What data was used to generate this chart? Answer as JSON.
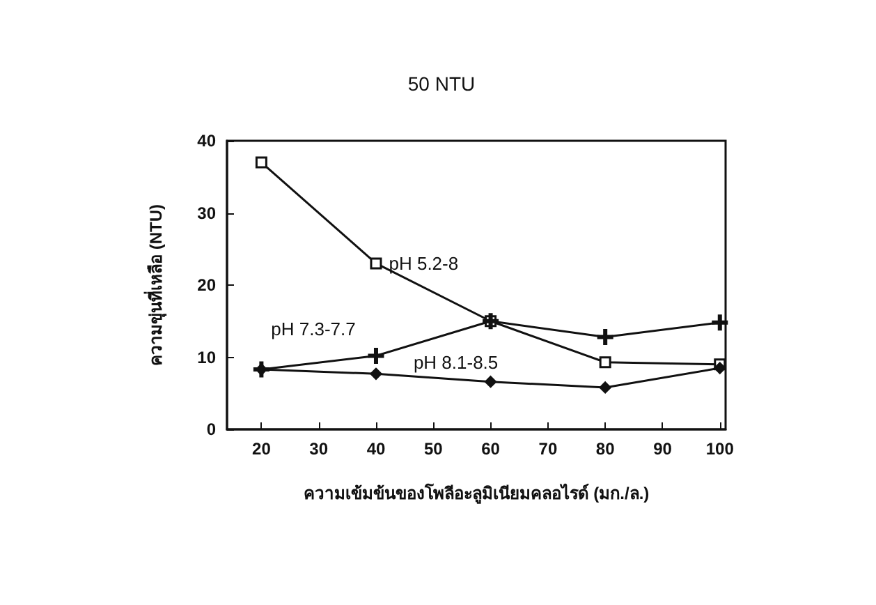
{
  "chart_data": {
    "type": "line",
    "title": "50 NTU",
    "xlabel": "ความเข้มข้นของโพลีอะลูมิเนียมคลอไรด์ (มก./ล.)",
    "ylabel": "ความขุ่นที่เหลือ (NTU)",
    "x": [
      20,
      40,
      60,
      80,
      100
    ],
    "series": [
      {
        "name": "pH 5.2-8",
        "color": "#111111",
        "marker": "square",
        "values": [
          37,
          23,
          15,
          9.3,
          9
        ]
      },
      {
        "name": "pH 7.3-7.7",
        "color": "#111111",
        "marker": "cross",
        "values": [
          8.3,
          10.2,
          15,
          12.8,
          14.8
        ]
      },
      {
        "name": "pH 8.1-8.5",
        "color": "#111111",
        "marker": "diamond",
        "values": [
          8.3,
          7.7,
          6.6,
          5.8,
          8.5
        ]
      }
    ],
    "xlim": [
      14,
      101
    ],
    "xticks": [
      20,
      30,
      40,
      50,
      60,
      70,
      80,
      90,
      100
    ],
    "ylim": [
      0,
      40
    ],
    "yticks": [
      0,
      10,
      20,
      30,
      40
    ],
    "grid": false,
    "legend": false,
    "line_style": "solid"
  }
}
